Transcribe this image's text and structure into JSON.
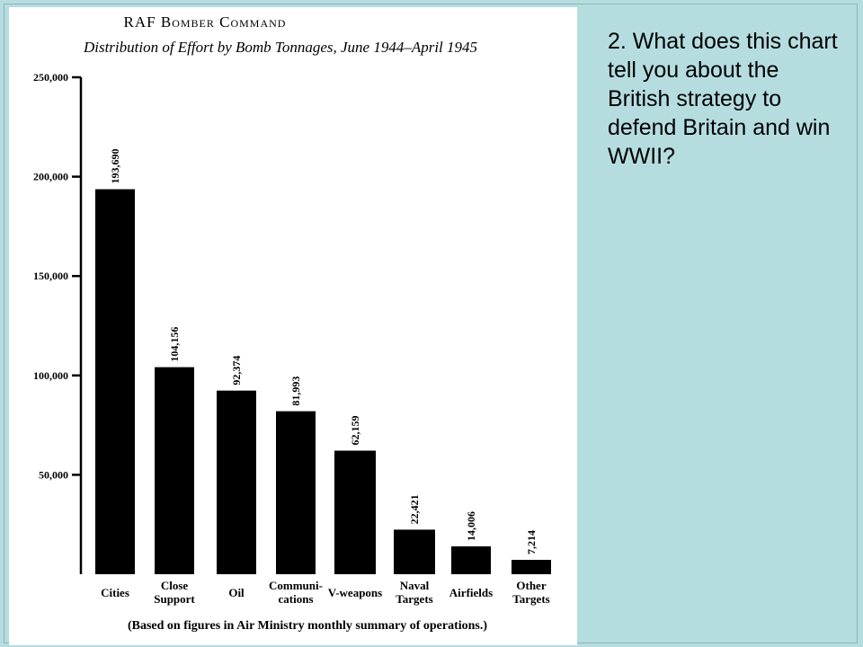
{
  "question": "2.  What does this chart tell you about the British strategy to defend Britain and win WWII?",
  "chart_data": {
    "type": "bar",
    "title": "RAF Bomber Command",
    "subtitle": "Distribution of Effort by Bomb Tonnages, June 1944–April 1945",
    "categories": [
      [
        "Cities"
      ],
      [
        "Close",
        "Support"
      ],
      [
        "Oil"
      ],
      [
        "Communi-",
        "cations"
      ],
      [
        "V-weapons"
      ],
      [
        "Naval",
        "Targets"
      ],
      [
        "Airfields"
      ],
      [
        "Other",
        "Targets"
      ]
    ],
    "values": [
      193690,
      104156,
      92374,
      81993,
      62159,
      22421,
      14006,
      7214
    ],
    "value_labels": [
      "193,690",
      "104,156",
      "92,374",
      "81,993",
      "62,159",
      "22,421",
      "14,006",
      "7,214"
    ],
    "yticks": [
      50000,
      100000,
      150000,
      200000,
      250000
    ],
    "ytick_labels": [
      "50,000",
      "100,000",
      "150,000",
      "200,000",
      "250,000"
    ],
    "ylim": [
      0,
      250000
    ],
    "footnote": "(Based on figures in Air Ministry monthly summary of operations.)",
    "colors": {
      "bar": "#000000",
      "text": "#000000"
    }
  }
}
